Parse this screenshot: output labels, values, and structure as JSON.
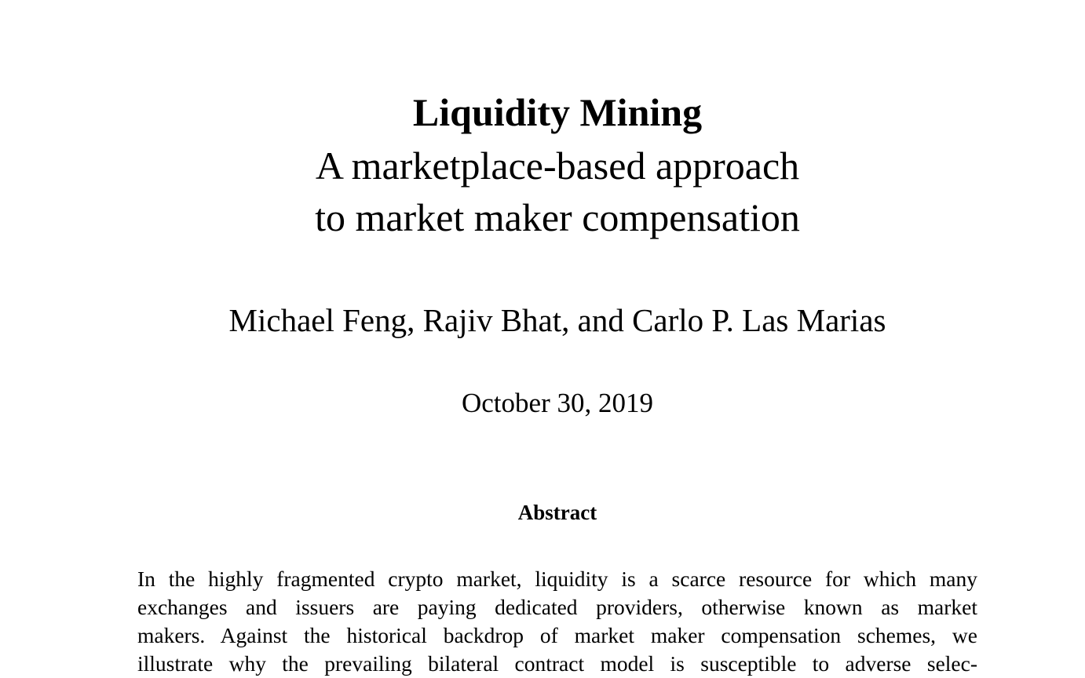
{
  "title": "Liquidity Mining",
  "subtitle_lines": [
    "A marketplace-based approach",
    "to market maker compensation"
  ],
  "authors": "Michael Feng, Rajiv Bhat, and Carlo P. Las Marias",
  "date": "October 30, 2019",
  "abstract": {
    "heading": "Abstract",
    "lines": [
      "In the highly fragmented crypto market, liquidity is a scarce resource for which many",
      "exchanges and issuers are paying dedicated providers, otherwise known as market",
      "makers. Against the historical backdrop of market maker compensation schemes, we",
      "illustrate why the prevailing bilateral contract model is susceptible to adverse selec-"
    ]
  }
}
